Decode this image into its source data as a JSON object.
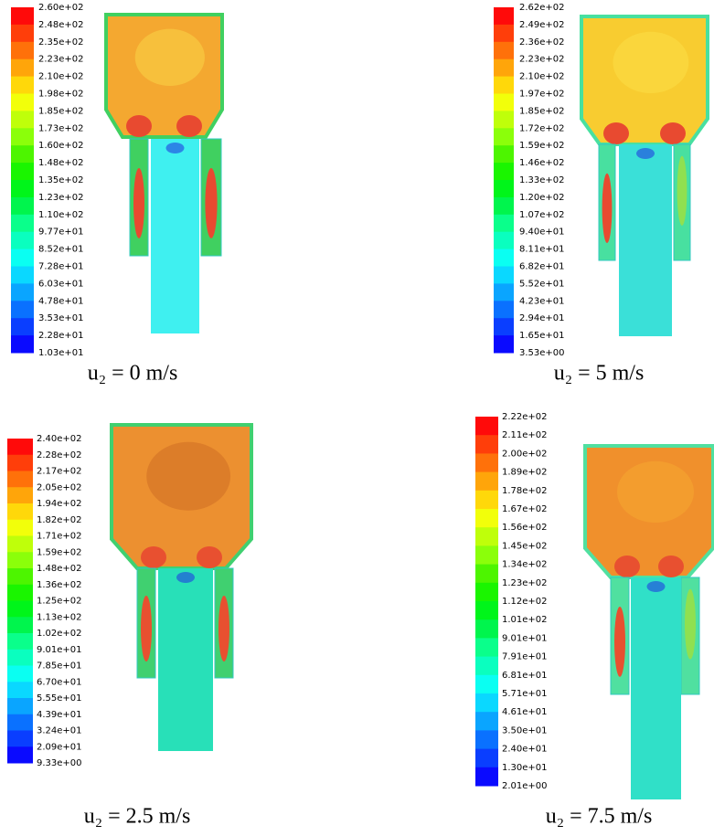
{
  "panels": [
    {
      "colorbar_labels": [
        "2.60e+02",
        "2.48e+02",
        "2.35e+02",
        "2.23e+02",
        "2.10e+02",
        "1.98e+02",
        "1.85e+02",
        "1.73e+02",
        "1.60e+02",
        "1.48e+02",
        "1.35e+02",
        "1.23e+02",
        "1.10e+02",
        "9.77e+01",
        "8.52e+01",
        "7.28e+01",
        "6.03e+01",
        "4.78e+01",
        "3.53e+01",
        "2.28e+01",
        "1.03e+01"
      ],
      "caption": "u₂ = 0 m/s"
    },
    {
      "colorbar_labels": [
        "2.62e+02",
        "2.49e+02",
        "2.36e+02",
        "2.23e+02",
        "2.10e+02",
        "1.97e+02",
        "1.85e+02",
        "1.72e+02",
        "1.59e+02",
        "1.46e+02",
        "1.33e+02",
        "1.20e+02",
        "1.07e+02",
        "9.40e+01",
        "8.11e+01",
        "6.82e+01",
        "5.52e+01",
        "4.23e+01",
        "2.94e+01",
        "1.65e+01",
        "3.53e+00"
      ],
      "caption": "u₂ = 5 m/s"
    },
    {
      "colorbar_labels": [
        "2.40e+02",
        "2.28e+02",
        "2.17e+02",
        "2.05e+02",
        "1.94e+02",
        "1.82e+02",
        "1.71e+02",
        "1.59e+02",
        "1.48e+02",
        "1.36e+02",
        "1.25e+02",
        "1.13e+02",
        "1.02e+02",
        "9.01e+01",
        "7.85e+01",
        "6.70e+01",
        "5.55e+01",
        "4.39e+01",
        "3.24e+01",
        "2.09e+01",
        "9.33e+00"
      ],
      "caption": "u₂ = 2.5 m/s"
    },
    {
      "colorbar_labels": [
        "2.22e+02",
        "2.11e+02",
        "2.00e+02",
        "1.89e+02",
        "1.78e+02",
        "1.67e+02",
        "1.56e+02",
        "1.45e+02",
        "1.34e+02",
        "1.23e+02",
        "1.12e+02",
        "1.01e+02",
        "9.01e+01",
        "7.91e+01",
        "6.81e+01",
        "5.71e+01",
        "4.61e+01",
        "3.50e+01",
        "2.40e+01",
        "1.30e+01",
        "2.01e+00"
      ],
      "caption": "u₂ = 7.5 m/s"
    }
  ]
}
